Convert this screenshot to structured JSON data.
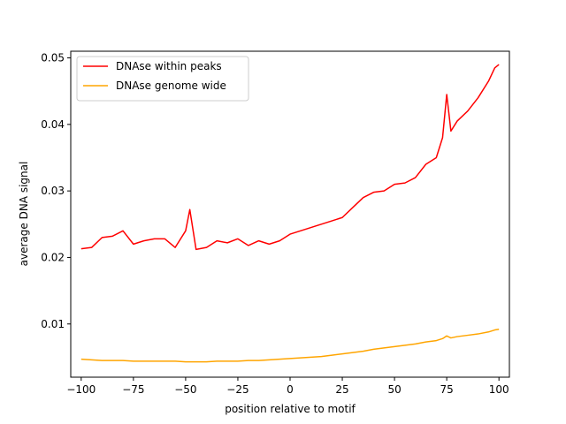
{
  "colors": {
    "series_within_peaks": "#ff0000",
    "series_genome_wide": "#ffa500"
  },
  "chart_data": {
    "type": "line",
    "title": "",
    "xlabel": "position relative to motif",
    "ylabel": "average DNA signal",
    "xlim": [
      -105,
      105
    ],
    "ylim": [
      0.002,
      0.051
    ],
    "xticks": [
      -100,
      -75,
      -50,
      -25,
      0,
      25,
      50,
      75,
      100
    ],
    "xtick_labels": [
      "−100",
      "−75",
      "−50",
      "−25",
      "0",
      "25",
      "50",
      "75",
      "100"
    ],
    "yticks": [
      0.01,
      0.02,
      0.03,
      0.04,
      0.05
    ],
    "ytick_labels": [
      "0.01",
      "0.02",
      "0.03",
      "0.04",
      "0.05"
    ],
    "grid": false,
    "legend_position": "upper-left",
    "x": [
      -100,
      -95,
      -90,
      -85,
      -80,
      -75,
      -70,
      -65,
      -60,
      -55,
      -50,
      -48,
      -45,
      -40,
      -35,
      -30,
      -25,
      -20,
      -15,
      -10,
      -5,
      0,
      5,
      10,
      15,
      20,
      25,
      30,
      35,
      40,
      45,
      50,
      55,
      60,
      65,
      70,
      73,
      75,
      77,
      80,
      85,
      90,
      95,
      98,
      100
    ],
    "series": [
      {
        "name": "DNAse within peaks",
        "color": "#ff0000",
        "values": [
          0.0213,
          0.0215,
          0.023,
          0.0232,
          0.024,
          0.022,
          0.0225,
          0.0228,
          0.0228,
          0.0215,
          0.024,
          0.0272,
          0.0212,
          0.0215,
          0.0225,
          0.0222,
          0.0228,
          0.0218,
          0.0225,
          0.022,
          0.0225,
          0.0235,
          0.024,
          0.0245,
          0.025,
          0.0255,
          0.026,
          0.0275,
          0.029,
          0.0298,
          0.03,
          0.031,
          0.0312,
          0.032,
          0.034,
          0.035,
          0.038,
          0.0445,
          0.039,
          0.0405,
          0.042,
          0.044,
          0.0465,
          0.0485,
          0.049
        ]
      },
      {
        "name": "DNAse genome wide",
        "color": "#ffa500",
        "values": [
          0.0047,
          0.0046,
          0.0045,
          0.0045,
          0.0045,
          0.0044,
          0.0044,
          0.0044,
          0.0044,
          0.0044,
          0.0043,
          0.0043,
          0.0043,
          0.0043,
          0.0044,
          0.0044,
          0.0044,
          0.0045,
          0.0045,
          0.0046,
          0.0047,
          0.0048,
          0.0049,
          0.005,
          0.0051,
          0.0053,
          0.0055,
          0.0057,
          0.0059,
          0.0062,
          0.0064,
          0.0066,
          0.0068,
          0.007,
          0.0073,
          0.0075,
          0.0078,
          0.0082,
          0.0079,
          0.0081,
          0.0083,
          0.0085,
          0.0088,
          0.0091,
          0.0092
        ]
      }
    ]
  }
}
